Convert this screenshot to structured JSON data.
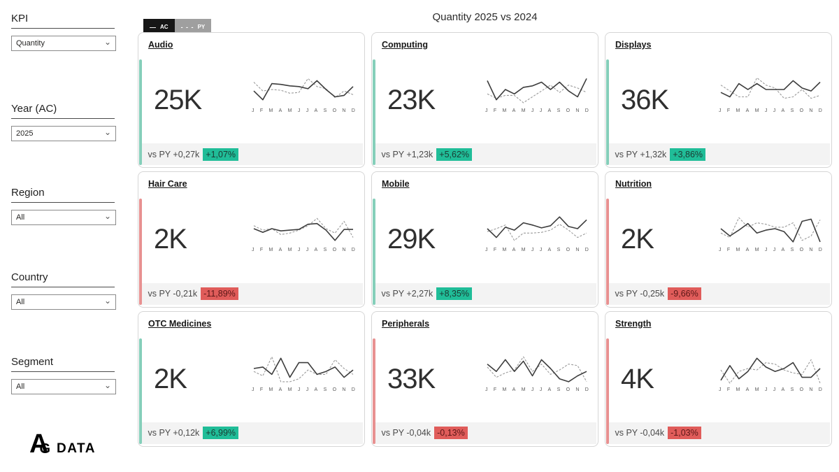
{
  "header": {
    "title": "Quantity 2025 vs 2024"
  },
  "legend": {
    "ac_label": "AC",
    "py_label": "PY",
    "ac_icon": "—",
    "py_icon": "- - -"
  },
  "filters": [
    {
      "label": "KPI",
      "value": "Quantity"
    },
    {
      "label": "Year (AC)",
      "value": "2025"
    },
    {
      "label": "Region",
      "value": "All"
    },
    {
      "label": "Country",
      "value": "All"
    },
    {
      "label": "Segment",
      "value": "All"
    }
  ],
  "logo": {
    "letter_a": "A",
    "letter_g": "G",
    "suffix": "DATA"
  },
  "months": [
    "J",
    "F",
    "M",
    "A",
    "M",
    "J",
    "J",
    "A",
    "S",
    "O",
    "N",
    "D"
  ],
  "colors": {
    "positive_badge": "#20bd98",
    "negative_badge": "#e05c5a",
    "positive_badge_text": "#1b3a32",
    "negative_badge_text": "#5a1717",
    "positive_bar": "#85cfba",
    "negative_bar": "#e89191",
    "ac_line": "#3d3d3d",
    "py_line": "#9a9a9a",
    "footer_bg": "#f3f3f3"
  },
  "cards": [
    {
      "name": "Audio",
      "value": "25K",
      "delta": "vs PY +0,27k",
      "pct": "+1,07%",
      "positive": true,
      "ac": [
        4.5,
        1.5,
        7,
        6.75,
        6.25,
        6,
        5.25,
        8,
        5,
        2.5,
        3,
        6
      ],
      "py": [
        7.5,
        4.5,
        5,
        4.75,
        3.75,
        4,
        8.75,
        6,
        5.25,
        2.25,
        4.5,
        3.25
      ]
    },
    {
      "name": "Computing",
      "value": "23K",
      "delta": "vs PY +1,23k",
      "pct": "+5,62%",
      "positive": true,
      "ac": [
        8,
        1.5,
        5,
        3.5,
        5.75,
        6.25,
        7.5,
        5,
        7.5,
        4.5,
        2.5,
        8.75
      ],
      "py": [
        3.5,
        2,
        3,
        3,
        0.5,
        2.5,
        4.5,
        6.5,
        4,
        6.5,
        5.5,
        4
      ]
    },
    {
      "name": "Displays",
      "value": "36K",
      "delta": "vs PY +1,32k",
      "pct": "+3,86%",
      "positive": true,
      "ac": [
        4,
        2.5,
        7,
        5,
        7,
        5,
        5,
        5,
        8,
        5.5,
        4.5,
        7.5
      ],
      "py": [
        6.5,
        4.5,
        2.5,
        2.5,
        9,
        6.5,
        5.5,
        2,
        2.5,
        5,
        2,
        3
      ]
    },
    {
      "name": "Hair Care",
      "value": "2K",
      "delta": "vs PY -0,21k",
      "pct": "-11,89%",
      "positive": false,
      "ac": [
        5,
        3.75,
        5,
        4.25,
        4.5,
        4.75,
        6.5,
        6.75,
        4.5,
        1,
        4.75,
        4.75
      ],
      "py": [
        6,
        4.5,
        5,
        3,
        3.5,
        4.5,
        6,
        8.5,
        5,
        3.5,
        7.5,
        2
      ]
    },
    {
      "name": "Mobile",
      "value": "29K",
      "delta": "vs PY +2,27k",
      "pct": "+8,35%",
      "positive": true,
      "ac": [
        5,
        2,
        5.5,
        4.5,
        7,
        6.25,
        5.25,
        6,
        9,
        5.75,
        5,
        8
      ],
      "py": [
        4,
        5,
        6.25,
        1,
        3.5,
        3.5,
        3.75,
        4.5,
        6.5,
        4.5,
        2,
        3.5
      ]
    },
    {
      "name": "Nutrition",
      "value": "2K",
      "delta": "vs PY -0,25k",
      "pct": "-9,66%",
      "positive": false,
      "ac": [
        5,
        2.5,
        4.5,
        6.75,
        3.5,
        4.5,
        5,
        4,
        0.5,
        7.5,
        8.25,
        0.5
      ],
      "py": [
        3.5,
        2,
        8.75,
        5.5,
        7,
        6.5,
        5.5,
        5.5,
        7,
        1,
        2.5,
        8
      ]
    },
    {
      "name": "OTC Medicines",
      "value": "2K",
      "delta": "vs PY +0,12k",
      "pct": "+6,99%",
      "positive": true,
      "ac": [
        5,
        5.5,
        3,
        8.5,
        2,
        7,
        7,
        3,
        4,
        5.5,
        2,
        4.5
      ],
      "py": [
        4,
        2.5,
        9,
        0.5,
        0.5,
        1.5,
        4.5,
        3,
        3,
        8,
        5,
        3
      ]
    },
    {
      "name": "Peripherals",
      "value": "33K",
      "delta": "vs PY -0,04k",
      "pct": "-0,13%",
      "positive": false,
      "ac": [
        6.5,
        4,
        8,
        4,
        7.5,
        2.5,
        8,
        5,
        1.5,
        0.5,
        2.5,
        4
      ],
      "py": [
        5.5,
        2,
        3.5,
        4.5,
        9,
        4,
        6.5,
        3,
        4.5,
        6.5,
        6,
        0.5
      ]
    },
    {
      "name": "Strength",
      "value": "4K",
      "delta": "vs PY -0,04k",
      "pct": "-1,03%",
      "positive": false,
      "ac": [
        1,
        6,
        1.5,
        4,
        8.5,
        5.5,
        4,
        5,
        7,
        2,
        2,
        5
      ],
      "py": [
        4.5,
        0,
        4,
        5,
        4.5,
        7,
        6.5,
        4.5,
        3.5,
        3,
        8,
        0
      ]
    }
  ]
}
